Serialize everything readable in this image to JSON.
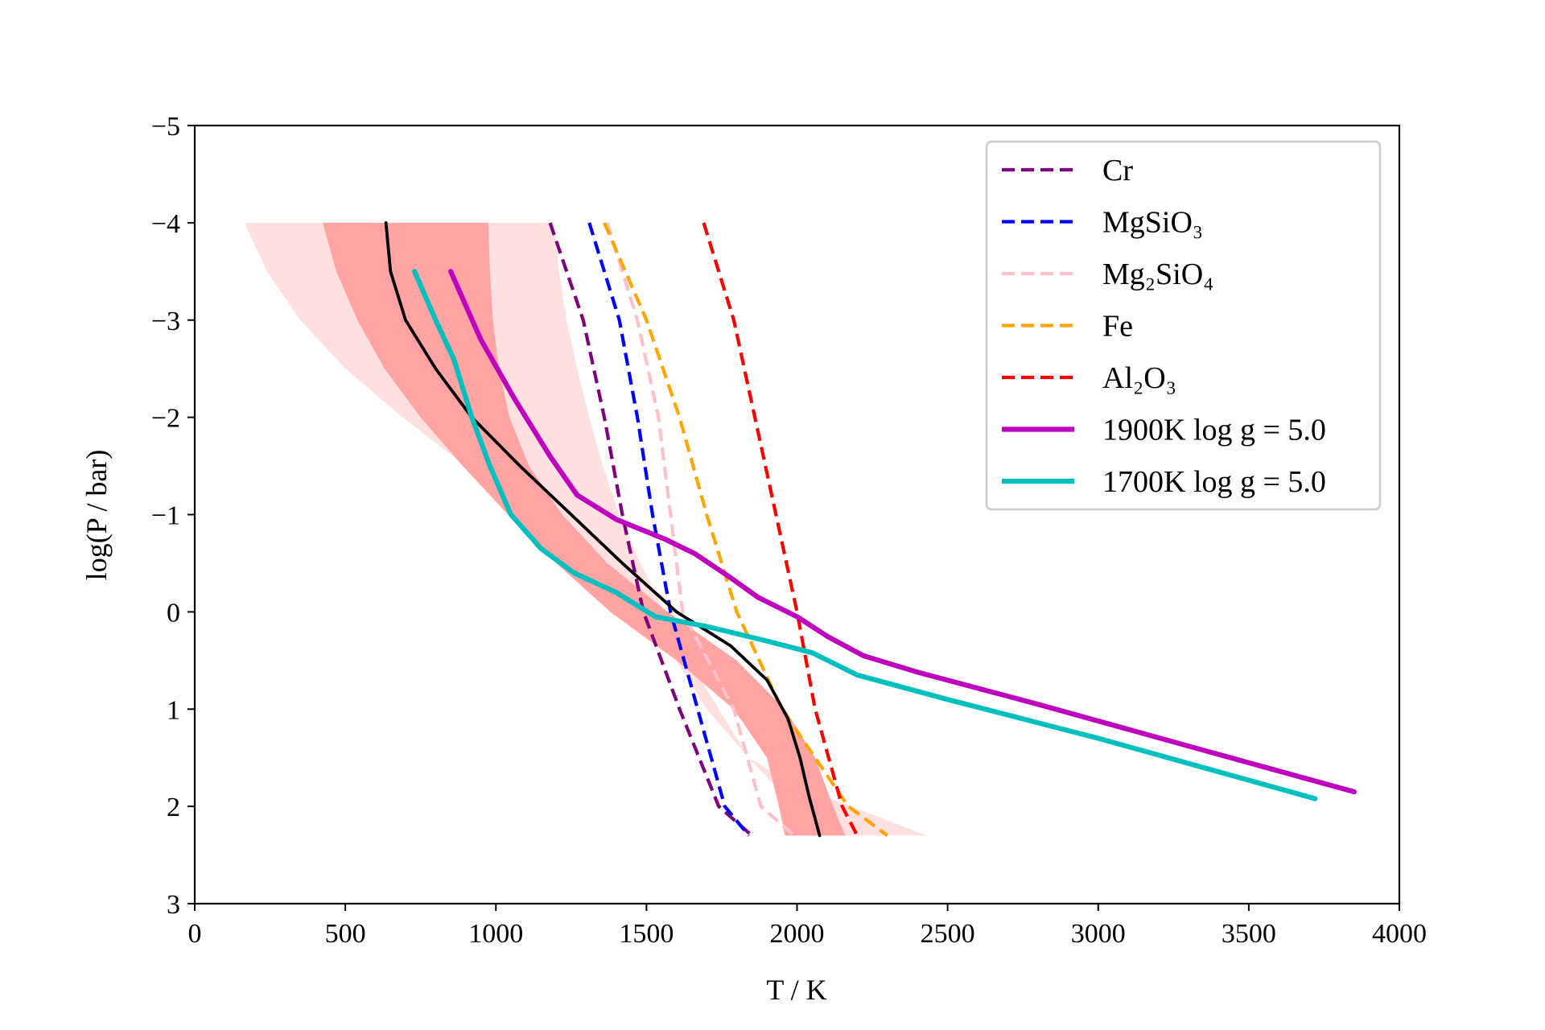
{
  "chart_data": {
    "type": "line",
    "xlabel": "T / K",
    "ylabel": "log(P / bar)",
    "xlim": [
      0,
      4000
    ],
    "ylim": [
      3,
      -5
    ],
    "y_inverted": true,
    "x_ticks": [
      0,
      500,
      1000,
      1500,
      2000,
      2500,
      3000,
      3500,
      4000
    ],
    "y_ticks": [
      -5,
      -4,
      -3,
      -2,
      -1,
      0,
      1,
      2,
      3
    ],
    "x_tick_labels": [
      "0",
      "500",
      "1000",
      "1500",
      "2000",
      "2500",
      "3000",
      "3500",
      "4000"
    ],
    "y_tick_labels": [
      "−5",
      "−4",
      "−3",
      "−2",
      "−1",
      "0",
      "1",
      "2",
      "3"
    ],
    "legend_position": "upper right",
    "bands": [
      {
        "level": "outer",
        "color": "#ffe0e0",
        "left": [
          [
            165,
            -4
          ],
          [
            240,
            -3.5
          ],
          [
            350,
            -3
          ],
          [
            500,
            -2.5
          ],
          [
            690,
            -2
          ],
          [
            900,
            -1.5
          ],
          [
            1130,
            -1
          ],
          [
            1330,
            -0.5
          ],
          [
            1480,
            0
          ],
          [
            1600,
            0.5
          ],
          [
            1700,
            1
          ],
          [
            1840,
            1.5
          ],
          [
            1990,
            2
          ],
          [
            2140,
            2.3
          ]
        ],
        "right": [
          [
            1190,
            -4
          ],
          [
            1210,
            -3.5
          ],
          [
            1235,
            -3
          ],
          [
            1270,
            -2.5
          ],
          [
            1310,
            -2
          ],
          [
            1355,
            -1.5
          ],
          [
            1410,
            -1
          ],
          [
            1480,
            -0.5
          ],
          [
            1560,
            0
          ],
          [
            1640,
            0.5
          ],
          [
            1740,
            1
          ],
          [
            1840,
            1.5
          ],
          [
            2000,
            1.8
          ],
          [
            2180,
            2
          ],
          [
            2430,
            2.3
          ]
        ]
      },
      {
        "level": "inner",
        "color": "#ffa3a3",
        "left": [
          [
            425,
            -4
          ],
          [
            470,
            -3.5
          ],
          [
            540,
            -3
          ],
          [
            630,
            -2.5
          ],
          [
            750,
            -2
          ],
          [
            890,
            -1.5
          ],
          [
            1040,
            -1
          ],
          [
            1200,
            -0.5
          ],
          [
            1380,
            0
          ],
          [
            1600,
            0.5
          ],
          [
            1790,
            1
          ],
          [
            1900,
            1.5
          ],
          [
            1940,
            2
          ],
          [
            1960,
            2.3
          ]
        ],
        "right": [
          [
            975,
            -4
          ],
          [
            980,
            -3.5
          ],
          [
            990,
            -3
          ],
          [
            1010,
            -2.5
          ],
          [
            1045,
            -2
          ],
          [
            1110,
            -1.5
          ],
          [
            1220,
            -1
          ],
          [
            1370,
            -0.5
          ],
          [
            1570,
            0
          ],
          [
            1800,
            0.5
          ],
          [
            1960,
            1
          ],
          [
            2060,
            1.5
          ],
          [
            2120,
            2
          ],
          [
            2160,
            2.3
          ]
        ]
      }
    ],
    "series": [
      {
        "name": "Cr",
        "style": "dashed",
        "color": "#800080",
        "points": [
          [
            1180,
            -4
          ],
          [
            1290,
            -3
          ],
          [
            1360,
            -2
          ],
          [
            1420,
            -1
          ],
          [
            1490,
            0
          ],
          [
            1610,
            1
          ],
          [
            1740,
            2
          ],
          [
            1850,
            2.3
          ]
        ]
      },
      {
        "name": "MgSiO₃",
        "style": "dashed",
        "color": "#0000ff",
        "points": [
          [
            1310,
            -4
          ],
          [
            1410,
            -3
          ],
          [
            1470,
            -2
          ],
          [
            1520,
            -1
          ],
          [
            1580,
            0
          ],
          [
            1670,
            1
          ],
          [
            1760,
            2
          ],
          [
            1840,
            2.3
          ]
        ]
      },
      {
        "name": "Mg₂SiO₄",
        "style": "dashed",
        "color": "#ffc0cb",
        "points": [
          [
            1370,
            -4
          ],
          [
            1470,
            -3
          ],
          [
            1540,
            -2
          ],
          [
            1580,
            -1
          ],
          [
            1620,
            0
          ],
          [
            1790,
            1
          ],
          [
            1880,
            2
          ],
          [
            1990,
            2.3
          ]
        ]
      },
      {
        "name": "Fe",
        "style": "dashed",
        "color": "#ffa500",
        "points": [
          [
            1360,
            -4
          ],
          [
            1500,
            -3
          ],
          [
            1610,
            -2
          ],
          [
            1700,
            -1
          ],
          [
            1800,
            0
          ],
          [
            1950,
            1
          ],
          [
            2170,
            2
          ],
          [
            2300,
            2.3
          ]
        ]
      },
      {
        "name": "Al₂O₃",
        "style": "dashed",
        "color": "#ff0000",
        "points": [
          [
            1690,
            -4
          ],
          [
            1790,
            -3
          ],
          [
            1860,
            -2
          ],
          [
            1930,
            -1
          ],
          [
            2000,
            0
          ],
          [
            2060,
            1
          ],
          [
            2150,
            2
          ],
          [
            2200,
            2.3
          ]
        ]
      },
      {
        "name": "1900K log g = 5.0",
        "style": "solid",
        "color": "#bf00bf",
        "points": [
          [
            850,
            -3.5
          ],
          [
            950,
            -2.8
          ],
          [
            1060,
            -2.2
          ],
          [
            1180,
            -1.6
          ],
          [
            1270,
            -1.2
          ],
          [
            1400,
            -0.95
          ],
          [
            1560,
            -0.75
          ],
          [
            1660,
            -0.6
          ],
          [
            1780,
            -0.35
          ],
          [
            1870,
            -0.15
          ],
          [
            2000,
            0.05
          ],
          [
            2100,
            0.25
          ],
          [
            2220,
            0.45
          ],
          [
            2400,
            0.62
          ],
          [
            2800,
            0.95
          ],
          [
            3300,
            1.38
          ],
          [
            3850,
            1.85
          ]
        ]
      },
      {
        "name": "1700K log g = 5.0",
        "style": "solid",
        "color": "#00bfbf",
        "points": [
          [
            730,
            -3.5
          ],
          [
            800,
            -3.0
          ],
          [
            860,
            -2.6
          ],
          [
            920,
            -2.0
          ],
          [
            980,
            -1.5
          ],
          [
            1050,
            -1.0
          ],
          [
            1150,
            -0.65
          ],
          [
            1260,
            -0.4
          ],
          [
            1400,
            -0.2
          ],
          [
            1530,
            0.05
          ],
          [
            1700,
            0.15
          ],
          [
            1900,
            0.3
          ],
          [
            2050,
            0.42
          ],
          [
            2200,
            0.65
          ],
          [
            2500,
            0.9
          ],
          [
            3000,
            1.3
          ],
          [
            3720,
            1.92
          ]
        ]
      },
      {
        "name": "",
        "style": "solid",
        "color": "#000000",
        "points": [
          [
            635,
            -4
          ],
          [
            650,
            -3.5
          ],
          [
            700,
            -3.0
          ],
          [
            800,
            -2.5
          ],
          [
            920,
            -2.0
          ],
          [
            1080,
            -1.5
          ],
          [
            1250,
            -1.0
          ],
          [
            1420,
            -0.5
          ],
          [
            1600,
            0
          ],
          [
            1780,
            0.35
          ],
          [
            1900,
            0.7
          ],
          [
            1970,
            1.1
          ],
          [
            2010,
            1.5
          ],
          [
            2040,
            1.9
          ],
          [
            2075,
            2.3
          ]
        ]
      }
    ]
  }
}
